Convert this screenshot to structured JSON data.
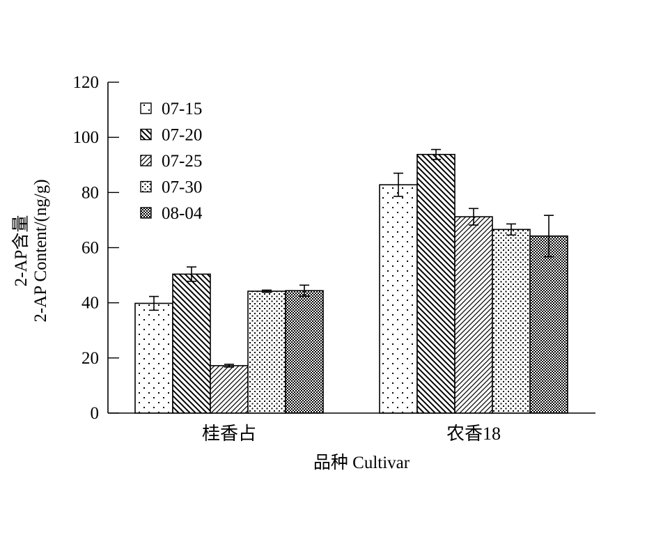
{
  "chart_data": {
    "type": "bar",
    "title": "",
    "xlabel": "品种 Cultivar",
    "ylabel_line1": "2-AP含量",
    "ylabel_line2": "2-AP Content/(ng/g)",
    "ylim": [
      0,
      120
    ],
    "yticks": [
      0,
      20,
      40,
      60,
      80,
      100,
      120
    ],
    "categories": [
      "桂香占",
      "农香18"
    ],
    "grid": false,
    "legend_position": "top-left",
    "series": [
      {
        "name": "07-15",
        "pattern": "sparse-dots",
        "values": [
          39.8,
          82.8
        ],
        "errors": [
          2.5,
          4.2
        ]
      },
      {
        "name": "07-20",
        "pattern": "dense-back-diagonal",
        "values": [
          50.4,
          93.8
        ],
        "errors": [
          2.6,
          1.8
        ]
      },
      {
        "name": "07-25",
        "pattern": "forward-diagonal",
        "values": [
          17.2,
          71.2
        ],
        "errors": [
          0.5,
          3.0
        ]
      },
      {
        "name": "07-30",
        "pattern": "dense-dots",
        "values": [
          44.2,
          66.6
        ],
        "errors": [
          0.4,
          2.0
        ]
      },
      {
        "name": "08-04",
        "pattern": "checker",
        "values": [
          44.4,
          64.2
        ],
        "errors": [
          2.0,
          7.5
        ]
      }
    ]
  }
}
